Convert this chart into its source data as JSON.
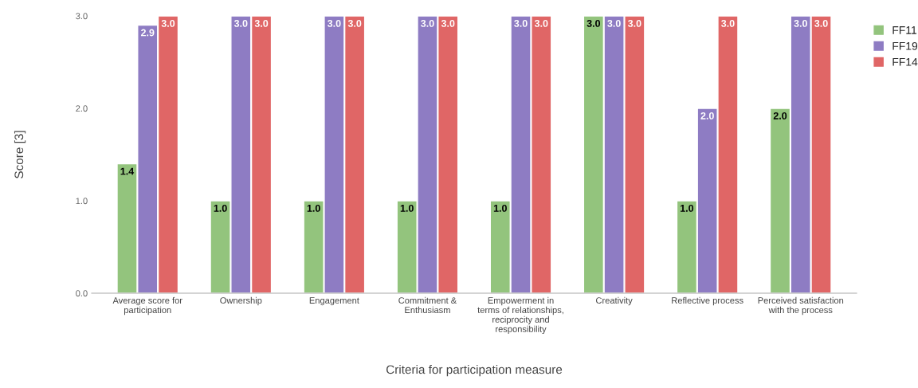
{
  "chart_data": {
    "type": "bar",
    "xlabel": "Criteria for participation measure",
    "ylabel": "Score [3]",
    "categories": [
      "Average score for\nparticipation",
      "Ownership",
      "Engagement",
      "Commitment &\nEnthusiasm",
      "Empowerment in\nterms of relationships,\nreciprocity and\nresponsibility",
      "Creativity",
      "Reflective process",
      "Perceived satisfaction\nwith the process"
    ],
    "series": [
      {
        "name": "FF11",
        "color": "#93c47d",
        "values": [
          1.4,
          1.0,
          1.0,
          1.0,
          1.0,
          3.0,
          1.0,
          2.0
        ],
        "value_labels": [
          "1.4",
          "1.0",
          "1.0",
          "1.0",
          "1.0",
          "3.0",
          "1.0",
          "2.0"
        ]
      },
      {
        "name": "FF19",
        "color": "#8e7cc3",
        "values": [
          2.9,
          3.0,
          3.0,
          3.0,
          3.0,
          3.0,
          2.0,
          3.0
        ],
        "value_labels": [
          "2.9",
          "3.0",
          "3.0",
          "3.0",
          "3.0",
          "3.0",
          "2.0",
          "3.0"
        ]
      },
      {
        "name": "FF14",
        "color": "#e06666",
        "values": [
          3.0,
          3.0,
          3.0,
          3.0,
          3.0,
          3.0,
          3.0,
          3.0
        ],
        "value_labels": [
          "3.0",
          "3.0",
          "3.0",
          "3.0",
          "3.0",
          "3.0",
          "3.0",
          "3.0"
        ]
      }
    ],
    "ylim": [
      0,
      3
    ],
    "yticks": [
      {
        "value": 0,
        "label": "0.0"
      },
      {
        "value": 1,
        "label": "1.0"
      },
      {
        "value": 2,
        "label": "2.0"
      },
      {
        "value": 3,
        "label": "3.0"
      }
    ],
    "legend": "top right",
    "grid": false
  }
}
